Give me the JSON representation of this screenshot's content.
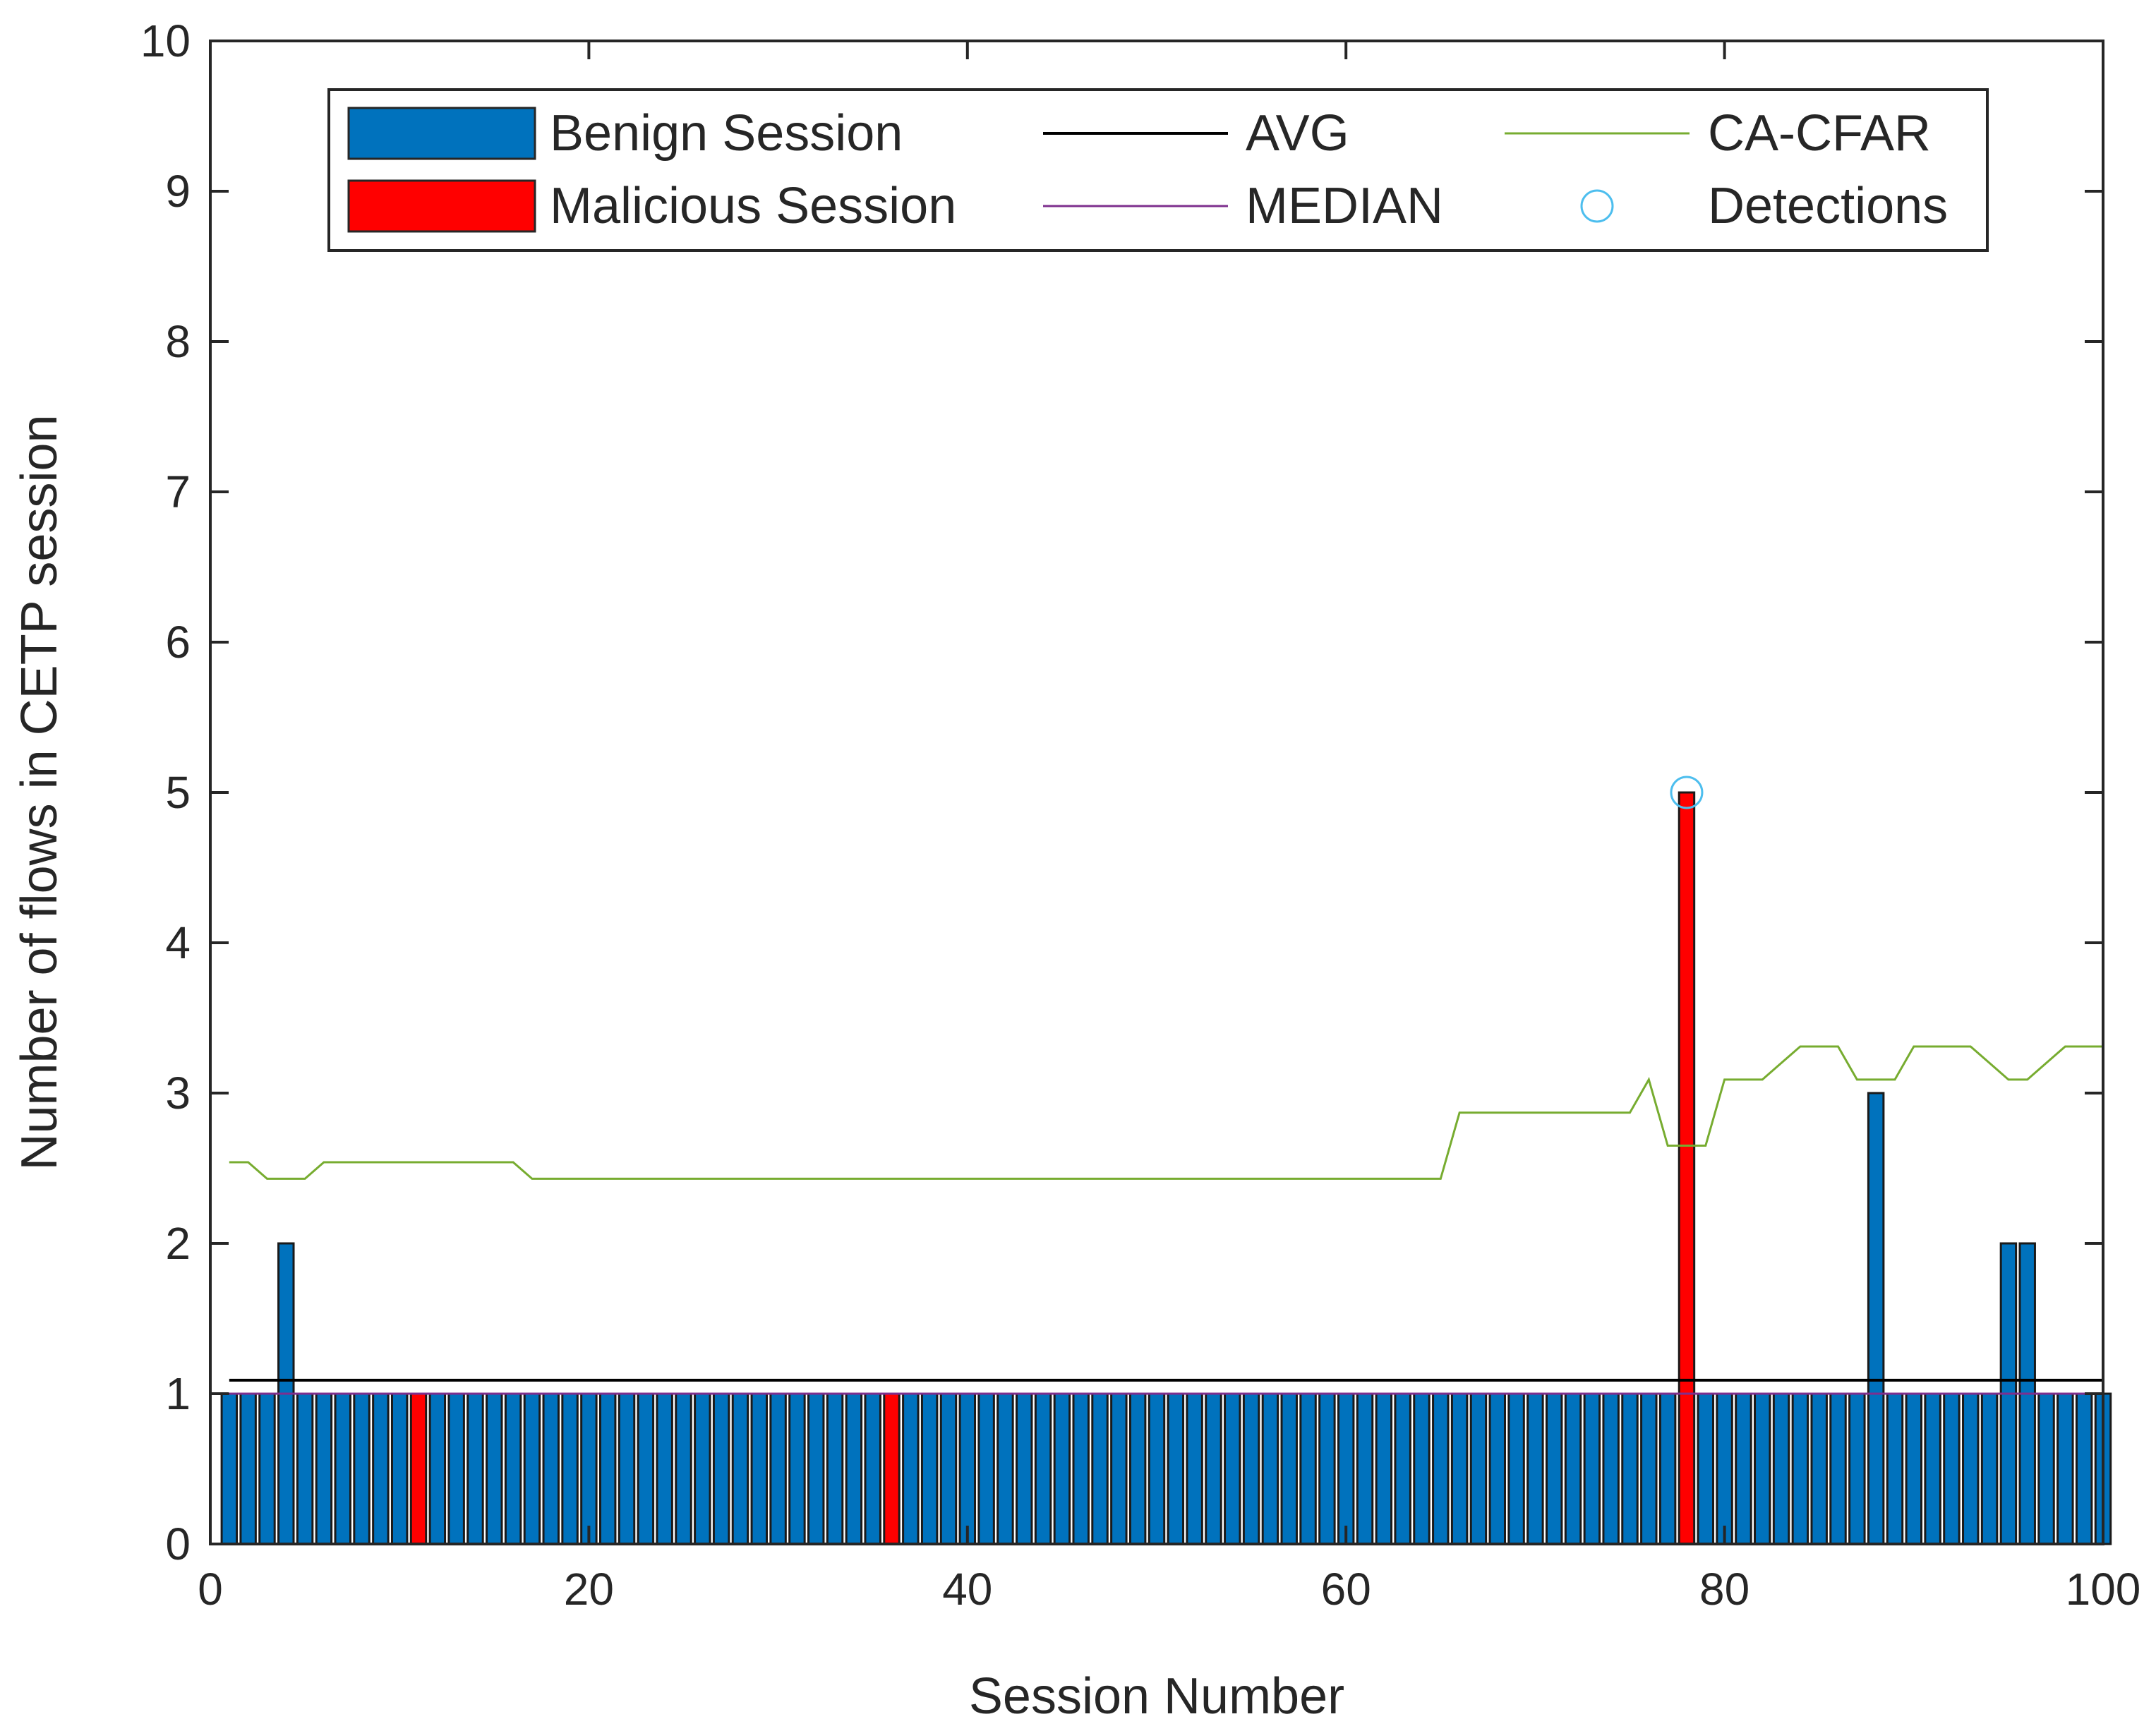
{
  "chart_data": {
    "type": "bar",
    "xlabel": "Session Number",
    "ylabel": "Number of flows in CETP session",
    "xlim": [
      0,
      100
    ],
    "ylim": [
      0,
      10
    ],
    "x_ticks": [
      "0",
      "20",
      "40",
      "60",
      "80",
      "100"
    ],
    "y_ticks": [
      "0",
      "1",
      "2",
      "3",
      "4",
      "5",
      "6",
      "7",
      "8",
      "9",
      "10"
    ],
    "x": [
      1,
      2,
      3,
      4,
      5,
      6,
      7,
      8,
      9,
      10,
      11,
      12,
      13,
      14,
      15,
      16,
      17,
      18,
      19,
      20,
      21,
      22,
      23,
      24,
      25,
      26,
      27,
      28,
      29,
      30,
      31,
      32,
      33,
      34,
      35,
      36,
      37,
      38,
      39,
      40,
      41,
      42,
      43,
      44,
      45,
      46,
      47,
      48,
      49,
      50,
      51,
      52,
      53,
      54,
      55,
      56,
      57,
      58,
      59,
      60,
      61,
      62,
      63,
      64,
      65,
      66,
      67,
      68,
      69,
      70,
      71,
      72,
      73,
      74,
      75,
      76,
      77,
      78,
      79,
      80,
      81,
      82,
      83,
      84,
      85,
      86,
      87,
      88,
      89,
      90,
      91,
      92,
      93,
      94,
      95,
      96,
      97,
      98,
      99,
      100
    ],
    "values": [
      1,
      1,
      1,
      2,
      1,
      1,
      1,
      1,
      1,
      1,
      1,
      1,
      1,
      1,
      1,
      1,
      1,
      1,
      1,
      1,
      1,
      1,
      1,
      1,
      1,
      1,
      1,
      1,
      1,
      1,
      1,
      1,
      1,
      1,
      1,
      1,
      1,
      1,
      1,
      1,
      1,
      1,
      1,
      1,
      1,
      1,
      1,
      1,
      1,
      1,
      1,
      1,
      1,
      1,
      1,
      1,
      1,
      1,
      1,
      1,
      1,
      1,
      1,
      1,
      1,
      1,
      1,
      1,
      1,
      1,
      1,
      1,
      1,
      1,
      1,
      1,
      1,
      5,
      1,
      1,
      1,
      1,
      1,
      1,
      1,
      1,
      1,
      3,
      1,
      1,
      1,
      1,
      1,
      1,
      2,
      2,
      1,
      1,
      1,
      1
    ],
    "malicious_sessions": [
      11,
      36,
      78
    ],
    "avg": 1.09,
    "median": 1,
    "ca_cfar": [
      2.54,
      2.54,
      2.43,
      2.43,
      2.43,
      2.54,
      2.54,
      2.54,
      2.54,
      2.54,
      2.54,
      2.54,
      2.54,
      2.54,
      2.54,
      2.54,
      2.43,
      2.43,
      2.43,
      2.43,
      2.43,
      2.43,
      2.43,
      2.43,
      2.43,
      2.43,
      2.43,
      2.43,
      2.43,
      2.43,
      2.43,
      2.43,
      2.43,
      2.43,
      2.43,
      2.43,
      2.43,
      2.43,
      2.43,
      2.43,
      2.43,
      2.43,
      2.43,
      2.43,
      2.43,
      2.43,
      2.43,
      2.43,
      2.43,
      2.43,
      2.43,
      2.43,
      2.43,
      2.43,
      2.43,
      2.43,
      2.43,
      2.43,
      2.43,
      2.43,
      2.43,
      2.43,
      2.43,
      2.43,
      2.43,
      2.87,
      2.87,
      2.87,
      2.87,
      2.87,
      2.87,
      2.87,
      2.87,
      2.87,
      2.87,
      3.09,
      2.65,
      2.65,
      2.65,
      3.09,
      3.09,
      3.09,
      3.2,
      3.31,
      3.31,
      3.31,
      3.09,
      3.09,
      3.09,
      3.31,
      3.31,
      3.31,
      3.31,
      3.2,
      3.09,
      3.09,
      3.2,
      3.31,
      3.31,
      3.31
    ],
    "detections": [
      {
        "x": 78,
        "y": 5
      }
    ],
    "legend": {
      "position": "top",
      "benign": "Benign Session",
      "malicious": "Malicious Session",
      "avg": "AVG",
      "median": "MEDIAN",
      "cacfar": "CA-CFAR",
      "detections": "Detections"
    },
    "colors": {
      "benign": "#0072BD",
      "malicious": "#FF0000",
      "avg": "#000000",
      "median": "#7E2F8E",
      "cacfar": "#77AC30",
      "detections": "#4DBEEE"
    }
  }
}
